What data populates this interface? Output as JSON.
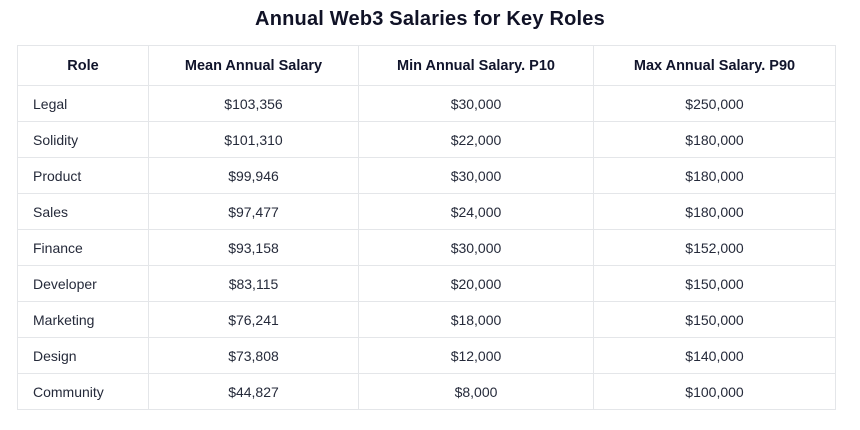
{
  "title": "Annual Web3 Salaries for Key Roles",
  "table": {
    "columns": [
      "Role",
      "Mean Annual Salary",
      "Min Annual Salary. P10",
      "Max Annual Salary. P90"
    ],
    "rows": [
      [
        "Legal",
        "$103,356",
        "$30,000",
        "$250,000"
      ],
      [
        "Solidity",
        "$101,310",
        "$22,000",
        "$180,000"
      ],
      [
        "Product",
        "$99,946",
        "$30,000",
        "$180,000"
      ],
      [
        "Sales",
        "$97,477",
        "$24,000",
        "$180,000"
      ],
      [
        "Finance",
        "$93,158",
        "$30,000",
        "$152,000"
      ],
      [
        "Developer",
        "$83,115",
        "$20,000",
        "$150,000"
      ],
      [
        "Marketing",
        "$76,241",
        "$18,000",
        "$150,000"
      ],
      [
        "Design",
        "$73,808",
        "$12,000",
        "$140,000"
      ],
      [
        "Community",
        "$44,827",
        "$8,000",
        "$100,000"
      ]
    ]
  },
  "colors": {
    "title_text": "#101226",
    "header_text": "#10142b",
    "body_text": "#252a3a",
    "grid_border": "#e4e6e9",
    "background": "#ffffff"
  },
  "chart_data": {
    "type": "table",
    "title": "Annual Web3 Salaries for Key Roles",
    "columns": [
      "Role",
      "Mean Annual Salary",
      "Min Annual Salary. P10",
      "Max Annual Salary. P90"
    ],
    "rows": [
      {
        "role": "Legal",
        "mean_annual_salary": 103356,
        "min_annual_salary_p10": 30000,
        "max_annual_salary_p90": 250000
      },
      {
        "role": "Solidity",
        "mean_annual_salary": 101310,
        "min_annual_salary_p10": 22000,
        "max_annual_salary_p90": 180000
      },
      {
        "role": "Product",
        "mean_annual_salary": 99946,
        "min_annual_salary_p10": 30000,
        "max_annual_salary_p90": 180000
      },
      {
        "role": "Sales",
        "mean_annual_salary": 97477,
        "min_annual_salary_p10": 24000,
        "max_annual_salary_p90": 180000
      },
      {
        "role": "Finance",
        "mean_annual_salary": 93158,
        "min_annual_salary_p10": 30000,
        "max_annual_salary_p90": 152000
      },
      {
        "role": "Developer",
        "mean_annual_salary": 83115,
        "min_annual_salary_p10": 20000,
        "max_annual_salary_p90": 150000
      },
      {
        "role": "Marketing",
        "mean_annual_salary": 76241,
        "min_annual_salary_p10": 18000,
        "max_annual_salary_p90": 150000
      },
      {
        "role": "Design",
        "mean_annual_salary": 73808,
        "min_annual_salary_p10": 12000,
        "max_annual_salary_p90": 140000
      },
      {
        "role": "Community",
        "mean_annual_salary": 44827,
        "min_annual_salary_p10": 8000,
        "max_annual_salary_p90": 100000
      }
    ],
    "layout": {
      "grid": true,
      "header_bold": true,
      "role_column_align": "left",
      "value_columns_align": "center"
    }
  }
}
